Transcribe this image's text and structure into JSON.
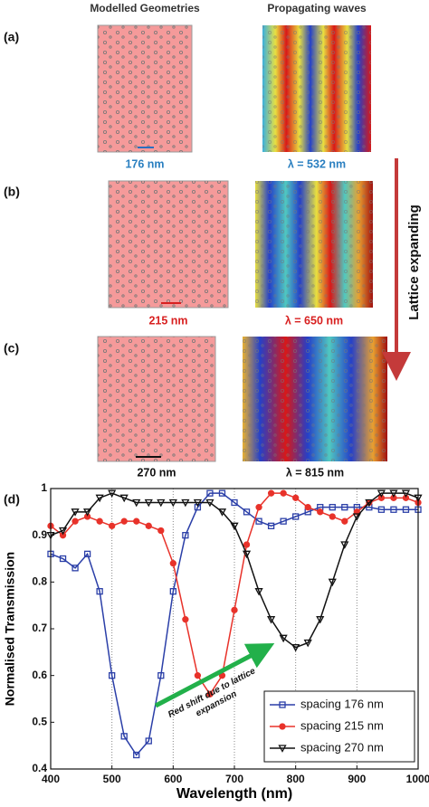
{
  "panels": {
    "column_titles": [
      "Modelled Geometries",
      "Propagating waves"
    ],
    "rows": [
      {
        "label": "(a)",
        "geometry": "176 nm",
        "wave": "λ = 532 nm"
      },
      {
        "label": "(b)",
        "geometry": "215 nm",
        "wave": "λ = 650 nm"
      },
      {
        "label": "(c)",
        "geometry": "270 nm",
        "wave": "λ = 815 nm"
      }
    ],
    "arrow_label": "Lattice expanding"
  },
  "chart_label": "(d)",
  "chart_data": {
    "type": "line",
    "xlabel": "Wavelength (nm)",
    "ylabel": "Normalised Transmission",
    "annotation": [
      "Red shift due to lattice",
      "expansion"
    ],
    "x": [
      400,
      420,
      440,
      460,
      480,
      500,
      520,
      540,
      560,
      580,
      600,
      620,
      640,
      660,
      680,
      700,
      720,
      740,
      760,
      780,
      800,
      820,
      840,
      860,
      880,
      900,
      920,
      940,
      960,
      980,
      1000
    ],
    "series": [
      {
        "name": "spacing 176 nm",
        "color": "#2b3fa8",
        "marker": "square",
        "values": [
          0.86,
          0.85,
          0.83,
          0.86,
          0.78,
          0.6,
          0.47,
          0.43,
          0.46,
          0.6,
          0.78,
          0.9,
          0.96,
          0.99,
          0.99,
          0.97,
          0.95,
          0.93,
          0.92,
          0.93,
          0.94,
          0.95,
          0.96,
          0.96,
          0.96,
          0.96,
          0.96,
          0.955,
          0.955,
          0.955,
          0.955
        ]
      },
      {
        "name": "spacing 215 nm",
        "color": "#e8322a",
        "marker": "circle",
        "values": [
          0.92,
          0.9,
          0.93,
          0.94,
          0.93,
          0.92,
          0.93,
          0.93,
          0.92,
          0.91,
          0.84,
          0.72,
          0.6,
          0.56,
          0.6,
          0.74,
          0.88,
          0.96,
          0.99,
          0.99,
          0.98,
          0.96,
          0.95,
          0.94,
          0.93,
          0.95,
          0.97,
          0.98,
          0.98,
          0.98,
          0.97
        ]
      },
      {
        "name": "spacing 270 nm",
        "color": "#111111",
        "marker": "triangle-down",
        "values": [
          0.9,
          0.91,
          0.95,
          0.95,
          0.98,
          0.99,
          0.98,
          0.97,
          0.97,
          0.97,
          0.97,
          0.97,
          0.97,
          0.97,
          0.95,
          0.92,
          0.86,
          0.78,
          0.72,
          0.68,
          0.66,
          0.67,
          0.72,
          0.8,
          0.88,
          0.94,
          0.97,
          0.99,
          0.99,
          0.99,
          0.98
        ]
      }
    ],
    "xlim": [
      400,
      1000
    ],
    "ylim": [
      0.4,
      1
    ],
    "xticks": [
      400,
      500,
      600,
      700,
      800,
      900,
      1000
    ],
    "yticks": [
      0.4,
      0.5,
      0.6,
      0.7,
      0.8,
      0.9,
      1
    ],
    "grid": "x",
    "legend": "lower right"
  }
}
